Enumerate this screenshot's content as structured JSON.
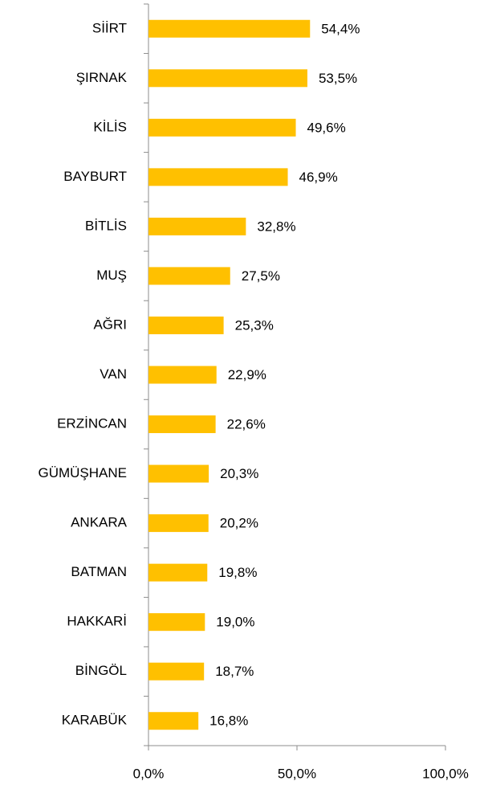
{
  "chart_data": {
    "type": "bar",
    "orientation": "horizontal",
    "categories": [
      "SİİRT",
      "ŞIRNAK",
      "KİLİS",
      "BAYBURT",
      "BİTLİS",
      "MUŞ",
      "AĞRI",
      "VAN",
      "ERZİNCAN",
      "GÜMÜŞHANE",
      "ANKARA",
      "BATMAN",
      "HAKKARİ",
      "BİNGÖL",
      "KARABÜK"
    ],
    "values": [
      54.4,
      53.5,
      49.6,
      46.9,
      32.8,
      27.5,
      25.3,
      22.9,
      22.6,
      20.3,
      20.2,
      19.8,
      19.0,
      18.7,
      16.8
    ],
    "value_labels": [
      "54,4%",
      "53,5%",
      "49,6%",
      "46,9%",
      "32,8%",
      "27,5%",
      "25,3%",
      "22,9%",
      "22,6%",
      "20,3%",
      "20,2%",
      "19,8%",
      "19,0%",
      "18,7%",
      "16,8%"
    ],
    "color": "#FFC000",
    "xlim": [
      0,
      100
    ],
    "xticks": [
      {
        "value": 0,
        "label": "0,0%"
      },
      {
        "value": 50,
        "label": "50,0%"
      },
      {
        "value": 100,
        "label": "100,0%"
      }
    ]
  }
}
